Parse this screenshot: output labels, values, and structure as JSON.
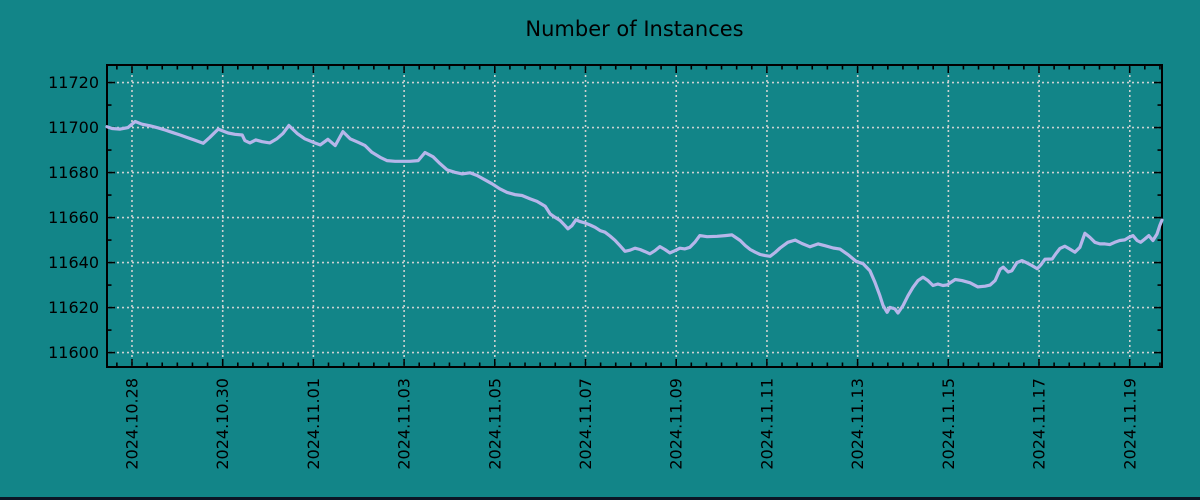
{
  "title": "Number of Instances",
  "colors": {
    "background": "#128588",
    "line": "#b6b6ea",
    "grid": "#cdd2d2",
    "axis": "#000000",
    "text": "#000000",
    "bottom_bar": "#0b1526"
  },
  "chart_data": {
    "type": "line",
    "title": "Number of Instances",
    "xlabel": "",
    "ylabel": "",
    "grid": true,
    "legend": "none",
    "x_tick_labels": [
      "2024.10.28",
      "2024.10.30",
      "2024.11.01",
      "2024.11.03",
      "2024.11.05",
      "2024.11.07",
      "2024.11.09",
      "2024.11.11",
      "2024.11.13",
      "2024.11.15",
      "2024.11.17",
      "2024.11.19"
    ],
    "x_tick_day_offsets": [
      0,
      2,
      4,
      6,
      8,
      10,
      12,
      14,
      16,
      18,
      20,
      22
    ],
    "x_minor_tick_step_days": 0.3333,
    "xlim_days": [
      -0.551,
      22.71
    ],
    "y_ticks": [
      11600,
      11620,
      11640,
      11660,
      11680,
      11700,
      11720
    ],
    "y_minor_step": 10,
    "ylim": [
      11593.6,
      11727.8
    ],
    "series": [
      {
        "name": "instances",
        "color": "#b6b6ea",
        "points": [
          [
            -0.55,
            11700.4
          ],
          [
            -0.44,
            11699.6
          ],
          [
            -0.26,
            11699.3
          ],
          [
            -0.09,
            11700.0
          ],
          [
            0.07,
            11702.7
          ],
          [
            0.22,
            11701.5
          ],
          [
            0.4,
            11700.8
          ],
          [
            0.57,
            11699.9
          ],
          [
            0.73,
            11698.9
          ],
          [
            0.88,
            11697.9
          ],
          [
            1.06,
            11696.7
          ],
          [
            1.23,
            11695.5
          ],
          [
            1.39,
            11694.4
          ],
          [
            1.57,
            11693.0
          ],
          [
            1.72,
            11695.7
          ],
          [
            1.9,
            11699.3
          ],
          [
            2.12,
            11697.6
          ],
          [
            2.27,
            11697.0
          ],
          [
            2.43,
            11696.7
          ],
          [
            2.49,
            11694.2
          ],
          [
            2.6,
            11693.2
          ],
          [
            2.73,
            11694.5
          ],
          [
            2.87,
            11693.7
          ],
          [
            3.04,
            11693.2
          ],
          [
            3.2,
            11695.1
          ],
          [
            3.33,
            11697.4
          ],
          [
            3.46,
            11700.9
          ],
          [
            3.64,
            11697.4
          ],
          [
            3.81,
            11695.0
          ],
          [
            3.99,
            11693.5
          ],
          [
            4.15,
            11692.3
          ],
          [
            4.32,
            11694.8
          ],
          [
            4.48,
            11692.0
          ],
          [
            4.65,
            11698.2
          ],
          [
            4.81,
            11695.0
          ],
          [
            4.98,
            11693.5
          ],
          [
            5.14,
            11692.0
          ],
          [
            5.29,
            11689.0
          ],
          [
            5.47,
            11686.8
          ],
          [
            5.62,
            11685.3
          ],
          [
            5.8,
            11685.0
          ],
          [
            5.98,
            11685.0
          ],
          [
            6.13,
            11685.0
          ],
          [
            6.31,
            11685.3
          ],
          [
            6.46,
            11688.9
          ],
          [
            6.64,
            11687.0
          ],
          [
            6.79,
            11684.0
          ],
          [
            6.95,
            11681.2
          ],
          [
            7.12,
            11680.1
          ],
          [
            7.28,
            11679.4
          ],
          [
            7.45,
            11679.9
          ],
          [
            7.61,
            11678.7
          ],
          [
            7.78,
            11676.8
          ],
          [
            7.94,
            11675.0
          ],
          [
            8.11,
            11672.8
          ],
          [
            8.27,
            11671.2
          ],
          [
            8.44,
            11670.2
          ],
          [
            8.6,
            11669.8
          ],
          [
            8.78,
            11668.3
          ],
          [
            8.93,
            11667.2
          ],
          [
            9.11,
            11665.0
          ],
          [
            9.22,
            11661.6
          ],
          [
            9.33,
            11660.1
          ],
          [
            9.44,
            11658.7
          ],
          [
            9.55,
            11656.4
          ],
          [
            9.61,
            11655.0
          ],
          [
            9.7,
            11656.4
          ],
          [
            9.79,
            11659.0
          ],
          [
            9.88,
            11658.2
          ],
          [
            9.99,
            11657.6
          ],
          [
            10.1,
            11656.7
          ],
          [
            10.21,
            11655.7
          ],
          [
            10.32,
            11654.2
          ],
          [
            10.43,
            11653.5
          ],
          [
            10.54,
            11651.8
          ],
          [
            10.65,
            11649.9
          ],
          [
            10.76,
            11647.5
          ],
          [
            10.87,
            11645.0
          ],
          [
            10.98,
            11645.5
          ],
          [
            11.09,
            11646.4
          ],
          [
            11.2,
            11645.8
          ],
          [
            11.31,
            11644.9
          ],
          [
            11.42,
            11643.9
          ],
          [
            11.53,
            11645.3
          ],
          [
            11.64,
            11647.1
          ],
          [
            11.75,
            11645.8
          ],
          [
            11.86,
            11644.3
          ],
          [
            11.97,
            11645.3
          ],
          [
            12.08,
            11646.4
          ],
          [
            12.19,
            11646.1
          ],
          [
            12.3,
            11646.8
          ],
          [
            12.41,
            11649.0
          ],
          [
            12.52,
            11652.0
          ],
          [
            12.68,
            11651.5
          ],
          [
            12.9,
            11651.7
          ],
          [
            13.08,
            11652.0
          ],
          [
            13.23,
            11652.3
          ],
          [
            13.41,
            11649.8
          ],
          [
            13.52,
            11647.6
          ],
          [
            13.63,
            11645.8
          ],
          [
            13.74,
            11644.6
          ],
          [
            13.85,
            11643.6
          ],
          [
            13.96,
            11643.1
          ],
          [
            14.07,
            11642.8
          ],
          [
            14.18,
            11644.5
          ],
          [
            14.29,
            11646.5
          ],
          [
            14.46,
            11649.0
          ],
          [
            14.62,
            11650.0
          ],
          [
            14.77,
            11648.5
          ],
          [
            14.95,
            11647.0
          ],
          [
            15.13,
            11648.3
          ],
          [
            15.28,
            11647.5
          ],
          [
            15.46,
            11646.5
          ],
          [
            15.61,
            11646.0
          ],
          [
            15.79,
            11643.5
          ],
          [
            15.97,
            11640.5
          ],
          [
            16.12,
            11639.5
          ],
          [
            16.27,
            11636.4
          ],
          [
            16.38,
            11631.3
          ],
          [
            16.49,
            11625.3
          ],
          [
            16.56,
            11620.9
          ],
          [
            16.65,
            11617.9
          ],
          [
            16.71,
            11620.1
          ],
          [
            16.82,
            11619.4
          ],
          [
            16.89,
            11617.6
          ],
          [
            17.0,
            11620.9
          ],
          [
            17.11,
            11625.3
          ],
          [
            17.22,
            11629.0
          ],
          [
            17.33,
            11632.0
          ],
          [
            17.44,
            11633.5
          ],
          [
            17.55,
            11632.0
          ],
          [
            17.66,
            11629.8
          ],
          [
            17.77,
            11630.5
          ],
          [
            17.88,
            11629.8
          ],
          [
            17.97,
            11630.1
          ],
          [
            18.15,
            11632.5
          ],
          [
            18.3,
            11632.0
          ],
          [
            18.48,
            11631.0
          ],
          [
            18.65,
            11629.2
          ],
          [
            18.81,
            11629.5
          ],
          [
            18.92,
            11630.0
          ],
          [
            19.03,
            11632.0
          ],
          [
            19.14,
            11637.0
          ],
          [
            19.21,
            11638.0
          ],
          [
            19.32,
            11635.8
          ],
          [
            19.4,
            11636.4
          ],
          [
            19.51,
            11640.0
          ],
          [
            19.62,
            11640.9
          ],
          [
            19.73,
            11639.9
          ],
          [
            19.84,
            11638.7
          ],
          [
            19.96,
            11637.3
          ],
          [
            20.04,
            11639.0
          ],
          [
            20.13,
            11641.5
          ],
          [
            20.29,
            11641.6
          ],
          [
            20.37,
            11644.0
          ],
          [
            20.46,
            11646.3
          ],
          [
            20.57,
            11647.3
          ],
          [
            20.68,
            11646.0
          ],
          [
            20.79,
            11644.6
          ],
          [
            20.9,
            11646.8
          ],
          [
            21.01,
            11653.0
          ],
          [
            21.12,
            11651.2
          ],
          [
            21.23,
            11649.0
          ],
          [
            21.34,
            11648.3
          ],
          [
            21.45,
            11648.3
          ],
          [
            21.56,
            11648.0
          ],
          [
            21.67,
            11649.0
          ],
          [
            21.78,
            11649.8
          ],
          [
            21.89,
            11650.1
          ],
          [
            21.98,
            11651.2
          ],
          [
            22.07,
            11652.0
          ],
          [
            22.16,
            11649.8
          ],
          [
            22.24,
            11649.0
          ],
          [
            22.33,
            11650.5
          ],
          [
            22.42,
            11652.0
          ],
          [
            22.51,
            11649.8
          ],
          [
            22.6,
            11652.7
          ],
          [
            22.66,
            11656.4
          ],
          [
            22.71,
            11658.9
          ]
        ]
      }
    ]
  }
}
